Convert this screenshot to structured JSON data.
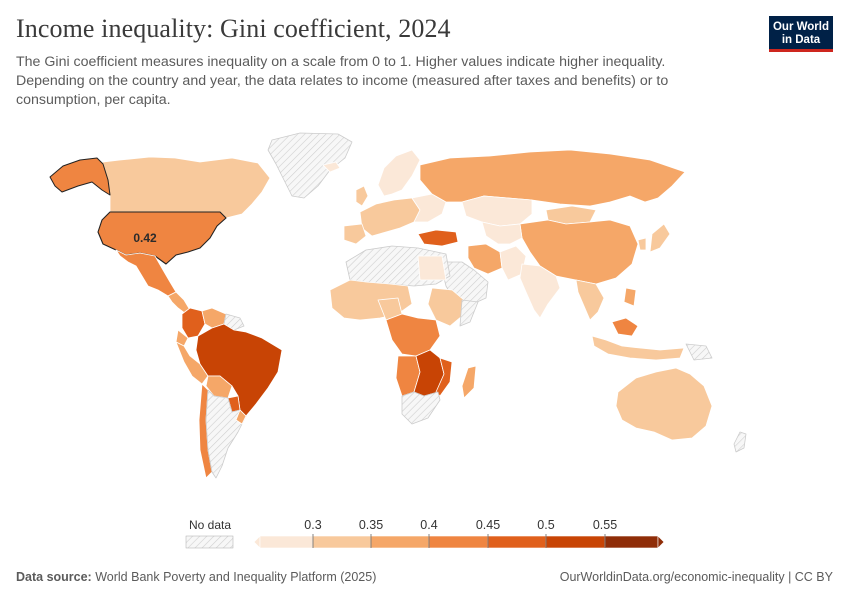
{
  "header": {
    "title": "Income inequality: Gini coefficient, 2024",
    "subtitle": "The Gini coefficient measures inequality on a scale from 0 to 1. Higher values indicate higher inequality. Depending on the country and year, the data relates to income (measured after taxes and benefits) or to consumption, per capita."
  },
  "logo": {
    "line1": "Our World",
    "line2": "in Data",
    "bg_color": "#002147",
    "accent_color": "#ce261e"
  },
  "map": {
    "highlighted_country": "United States",
    "highlight_label": "0.42",
    "color_scale": [
      "#fbe8d8",
      "#f8c99c",
      "#f5a768",
      "#ef8541",
      "#e0601c",
      "#c84405",
      "#8f2d08"
    ],
    "no_data_color": "#eeeeee"
  },
  "legend": {
    "no_data_label": "No data",
    "ticks": [
      "0.3",
      "0.35",
      "0.4",
      "0.45",
      "0.5",
      "0.55"
    ]
  },
  "footer": {
    "source_label": "Data source:",
    "source_text": "World Bank Poverty and Inequality Platform (2025)",
    "link_text": "OurWorldinData.org/economic-inequality | CC BY"
  }
}
